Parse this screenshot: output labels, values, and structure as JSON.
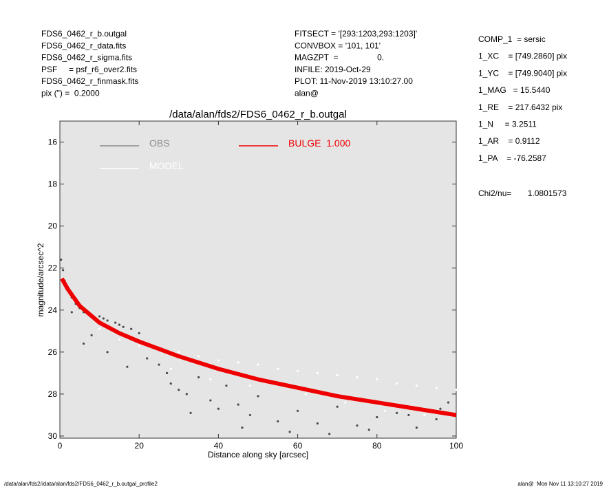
{
  "header": {
    "left": [
      "FDS6_0462_r_b.outgal",
      "FDS6_0462_r_data.fits",
      "FDS6_0462_r_sigma.fits",
      "PSF     = psf_r6_over2.fits",
      "FDS6_0462_r_finmask.fits",
      "pix (\") =  0.2000"
    ],
    "middle": [
      "FITSECT = '[293:1203,293:1203]'",
      "CONVBOX = '101, 101'",
      "MAGZPT  =                 0.",
      "INFILE: 2019-Oct-29",
      "PLOT: 11-Nov-2019 13:10:27.00",
      "alan@"
    ],
    "right": [
      "COMP_1  = sersic",
      "1_XC    = [749.2860] pix",
      "1_YC    = [749.9040] pix",
      "1_MAG   = 15.5440",
      "1_RE    = 217.6432 pix",
      "1_N     = 3.2511",
      "1_AR    = 0.9112",
      "1_PA    = -76.2587"
    ],
    "chi": "Chi2/nu=       1.0801573"
  },
  "footer": {
    "left": "/data/alan/fds2//data/alan/fds2/FDS6_0462_r_b.outgal_profile2",
    "right": "alan@  Mon Nov 11 13:10:27 2019"
  },
  "chart_data": {
    "type": "scatter",
    "title": "/data/alan/fds2/FDS6_0462_r_b.outgal",
    "x_label": "Distance along sky [arcsec]",
    "y_label": "magnitude/arcsec^2",
    "xlim": [
      0,
      100
    ],
    "xticks": [
      0,
      20,
      40,
      60,
      80,
      100
    ],
    "ylim": [
      15,
      30.1
    ],
    "yticks": [
      16,
      18,
      20,
      22,
      24,
      26,
      28,
      30
    ],
    "y_inverted": true,
    "series": [
      {
        "name": "OBS",
        "color": "#4a4a4a",
        "legend_color": "#8c8c8c",
        "kind": "points",
        "x": [
          0.3,
          0.8,
          1.2,
          2,
          3,
          4,
          5,
          6,
          8,
          10,
          11,
          12,
          14,
          15,
          16,
          18,
          20,
          22,
          25,
          28,
          30,
          32,
          35,
          38,
          40,
          42,
          45,
          48,
          50,
          55,
          60,
          65,
          70,
          75,
          80,
          85,
          90,
          95,
          98,
          3,
          6,
          8,
          12,
          17,
          27,
          33,
          46,
          58,
          68,
          78,
          88,
          96
        ],
        "values": [
          21.6,
          22.1,
          22.6,
          23.0,
          23.4,
          23.7,
          23.9,
          24.1,
          24.3,
          24.3,
          24.4,
          24.5,
          24.6,
          24.7,
          24.8,
          24.9,
          25.1,
          26.3,
          26.6,
          27.5,
          27.8,
          28.0,
          27.2,
          28.3,
          28.7,
          27.6,
          28.5,
          29.0,
          28.1,
          29.3,
          28.8,
          29.4,
          28.6,
          29.5,
          29.1,
          28.9,
          29.6,
          29.2,
          28.4,
          24.1,
          25.6,
          25.2,
          26.0,
          26.7,
          27.0,
          28.9,
          29.6,
          29.8,
          29.9,
          29.7,
          29.0,
          28.7
        ]
      },
      {
        "name": "MODEL",
        "color": "#ffffff",
        "legend_color": "#ffffff",
        "kind": "points",
        "x": [
          10,
          15,
          20,
          25,
          30,
          35,
          40,
          45,
          50,
          55,
          60,
          65,
          70,
          75,
          80,
          85,
          90,
          95,
          100,
          28,
          38,
          48,
          62,
          72,
          82,
          92
        ],
        "values": [
          24.9,
          25.4,
          25.7,
          25.9,
          26.0,
          26.2,
          26.4,
          26.5,
          26.6,
          26.8,
          26.9,
          27.0,
          27.1,
          27.2,
          27.3,
          27.5,
          27.6,
          27.7,
          27.8,
          26.8,
          27.3,
          27.6,
          28.0,
          28.4,
          28.8,
          29.0
        ]
      },
      {
        "name": "BULGE  1.000",
        "color": "#ee0000",
        "legend_color": "#ee0000",
        "kind": "line",
        "x": [
          0.5,
          2,
          5,
          10,
          15,
          20,
          30,
          40,
          50,
          60,
          70,
          80,
          90,
          100
        ],
        "values": [
          22.5,
          23.0,
          23.8,
          24.6,
          25.1,
          25.5,
          26.2,
          26.8,
          27.3,
          27.7,
          28.1,
          28.4,
          28.7,
          29.0
        ]
      }
    ]
  }
}
